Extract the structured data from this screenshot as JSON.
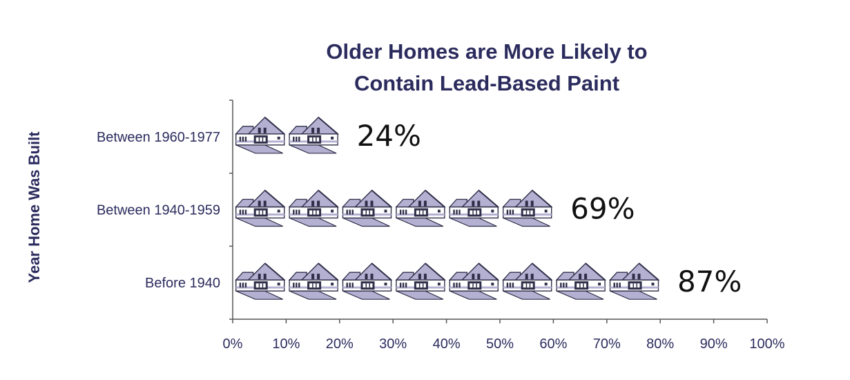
{
  "chart_data": {
    "type": "bar",
    "title_lines": [
      "Older Homes are More Likely to",
      "Contain Lead-Based Paint"
    ],
    "ylabel": "Year Home Was Built",
    "xlabel": "",
    "categories": [
      "Between 1960-1977",
      "Between 1940-1959",
      "Before 1940"
    ],
    "values": [
      24,
      69,
      87
    ],
    "value_labels": [
      "24%",
      "69%",
      "87%"
    ],
    "xlim": [
      0,
      100
    ],
    "x_ticks": [
      "0%",
      "10%",
      "20%",
      "30%",
      "40%",
      "50%",
      "60%",
      "70%",
      "80%",
      "90%",
      "100%"
    ],
    "orientation": "horizontal",
    "bar_style": "pictograph",
    "icon": "house-icon",
    "icon_unit_percent": 10,
    "grid": false,
    "colors": {
      "roof": "#b4b0d2",
      "body": "#ffffff",
      "outline": "#2e2e48",
      "text": "#2b2b5e"
    }
  }
}
